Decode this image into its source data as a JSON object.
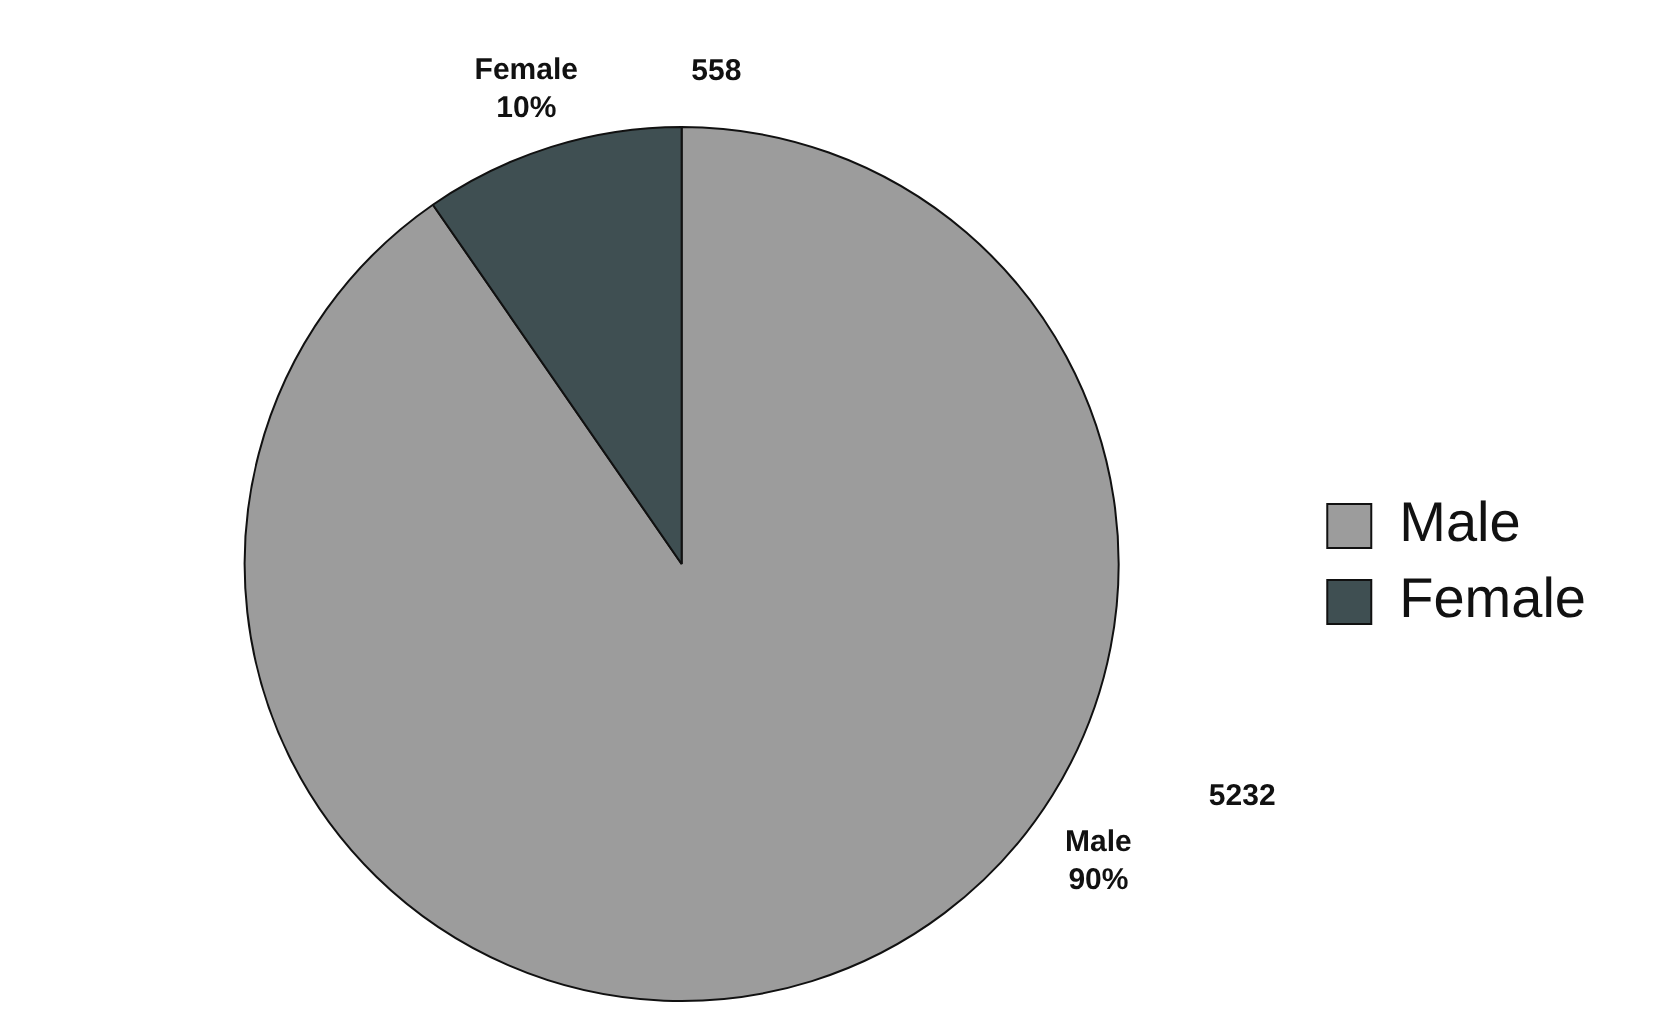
{
  "chart_data": {
    "type": "pie",
    "categories": [
      "Male",
      "Female"
    ],
    "values": [
      5232,
      558
    ],
    "colors": [
      "#9c9c9c",
      "#3f4f52"
    ],
    "value_labels": [
      "5232",
      "558"
    ],
    "annotations": [
      "Male\n90%",
      "Female\n10%"
    ],
    "legend": "right"
  }
}
